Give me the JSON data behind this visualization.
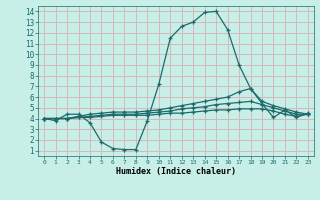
{
  "xlabel": "Humidex (Indice chaleur)",
  "ylabel": "",
  "bg_color": "#c8eee8",
  "plot_bg_color": "#c8eee8",
  "grid_color": "#d4b8b8",
  "line_color": "#1a6b6b",
  "xlim": [
    -0.5,
    23.5
  ],
  "ylim": [
    0.5,
    14.5
  ],
  "xticks": [
    0,
    1,
    2,
    3,
    4,
    5,
    6,
    7,
    8,
    9,
    10,
    11,
    12,
    13,
    14,
    15,
    16,
    17,
    18,
    19,
    20,
    21,
    22,
    23
  ],
  "yticks": [
    1,
    2,
    3,
    4,
    5,
    6,
    7,
    8,
    9,
    10,
    11,
    12,
    13,
    14
  ],
  "lines": [
    {
      "x": [
        0,
        1,
        2,
        3,
        4,
        5,
        6,
        7,
        8,
        9,
        10,
        11,
        12,
        13,
        14,
        15,
        16,
        17,
        18,
        19,
        20,
        21,
        22,
        23
      ],
      "y": [
        4.0,
        3.8,
        4.4,
        4.4,
        3.6,
        1.8,
        1.2,
        1.1,
        1.1,
        3.8,
        7.2,
        11.5,
        12.6,
        13.0,
        13.9,
        14.0,
        12.3,
        9.0,
        6.8,
        5.4,
        4.1,
        4.8,
        4.1,
        4.5
      ]
    },
    {
      "x": [
        0,
        1,
        2,
        3,
        4,
        5,
        6,
        7,
        8,
        9,
        10,
        11,
        12,
        13,
        14,
        15,
        16,
        17,
        18,
        19,
        20,
        21,
        22,
        23
      ],
      "y": [
        4.0,
        4.0,
        4.0,
        4.2,
        4.4,
        4.5,
        4.6,
        4.6,
        4.6,
        4.7,
        4.8,
        5.0,
        5.2,
        5.4,
        5.6,
        5.8,
        6.0,
        6.5,
        6.8,
        5.6,
        5.2,
        4.9,
        4.6,
        4.4
      ]
    },
    {
      "x": [
        0,
        1,
        2,
        3,
        4,
        5,
        6,
        7,
        8,
        9,
        10,
        11,
        12,
        13,
        14,
        15,
        16,
        17,
        18,
        19,
        20,
        21,
        22,
        23
      ],
      "y": [
        4.0,
        4.0,
        4.0,
        4.1,
        4.2,
        4.3,
        4.4,
        4.4,
        4.4,
        4.5,
        4.6,
        4.7,
        4.9,
        5.0,
        5.1,
        5.3,
        5.4,
        5.5,
        5.6,
        5.3,
        5.0,
        4.7,
        4.4,
        4.4
      ]
    },
    {
      "x": [
        0,
        1,
        2,
        3,
        4,
        5,
        6,
        7,
        8,
        9,
        10,
        11,
        12,
        13,
        14,
        15,
        16,
        17,
        18,
        19,
        20,
        21,
        22,
        23
      ],
      "y": [
        4.0,
        4.0,
        4.0,
        4.1,
        4.1,
        4.2,
        4.3,
        4.3,
        4.3,
        4.3,
        4.4,
        4.5,
        4.5,
        4.6,
        4.7,
        4.8,
        4.8,
        4.9,
        4.9,
        4.9,
        4.7,
        4.4,
        4.2,
        4.4
      ]
    }
  ]
}
